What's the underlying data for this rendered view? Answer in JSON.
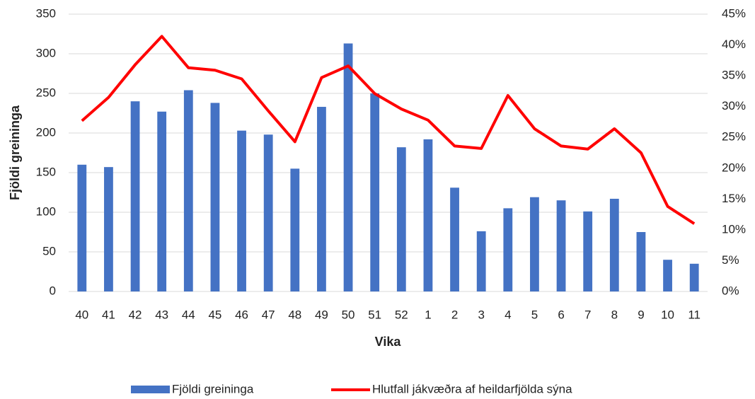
{
  "chart_data": {
    "type": "bar_line",
    "xlabel": "Vika",
    "ylabel": "Fjöldi greininga",
    "categories": [
      "40",
      "41",
      "42",
      "43",
      "44",
      "45",
      "46",
      "47",
      "48",
      "49",
      "50",
      "51",
      "52",
      "1",
      "2",
      "3",
      "4",
      "5",
      "6",
      "7",
      "8",
      "9",
      "10",
      "11"
    ],
    "series": [
      {
        "name": "Fjöldi greininga",
        "type": "bar",
        "color": "#4472c4",
        "values": [
          160,
          157,
          240,
          227,
          254,
          238,
          203,
          198,
          155,
          233,
          313,
          250,
          182,
          192,
          131,
          76,
          105,
          119,
          115,
          101,
          117,
          75,
          40,
          35
        ]
      },
      {
        "name": "Hlutfall jákvæðra af heildarfjölda sýna",
        "type": "line",
        "color": "#ff0000",
        "axis": "y2",
        "values": [
          27.7,
          31.5,
          36.8,
          41.4,
          36.3,
          35.9,
          34.5,
          29.3,
          24.3,
          34.7,
          36.6,
          32.1,
          29.6,
          27.8,
          23.6,
          23.2,
          31.8,
          26.4,
          23.6,
          23.1,
          26.4,
          22.5,
          13.8,
          11.0
        ]
      }
    ],
    "ylim": [
      0,
      350
    ],
    "yticks": [
      0,
      50,
      100,
      150,
      200,
      250,
      300,
      350
    ],
    "y2lim": [
      0,
      45
    ],
    "y2ticks": [
      {
        "value": 0,
        "label": "0%"
      },
      {
        "value": 5,
        "label": "5%"
      },
      {
        "value": 10,
        "label": "10%"
      },
      {
        "value": 15,
        "label": "15%"
      },
      {
        "value": 20,
        "label": "20%"
      },
      {
        "value": 25,
        "label": "25%"
      },
      {
        "value": 30,
        "label": "30%"
      },
      {
        "value": 35,
        "label": "35%"
      },
      {
        "value": 40,
        "label": "40%"
      },
      {
        "value": 45,
        "label": "45%"
      }
    ],
    "grid": true,
    "legend": "bottom"
  }
}
